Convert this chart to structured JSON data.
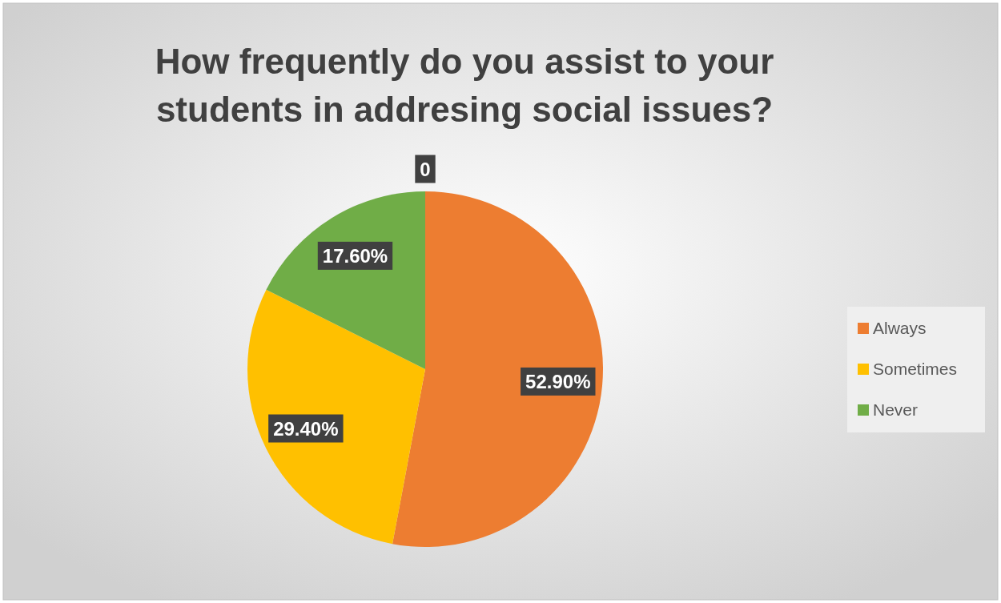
{
  "chart_data": {
    "type": "pie",
    "title": "How frequently do you assist to your students in addresing social issues?",
    "categories": [
      "Always",
      "Sometimes",
      "Never"
    ],
    "values": [
      52.9,
      29.4,
      17.6
    ],
    "colors": [
      "#ed7d31",
      "#ffc000",
      "#70ad47"
    ],
    "value_labels": [
      "52.90%",
      "29.40%",
      "17.60%"
    ],
    "annotations": [
      "0"
    ],
    "legend": "right"
  }
}
